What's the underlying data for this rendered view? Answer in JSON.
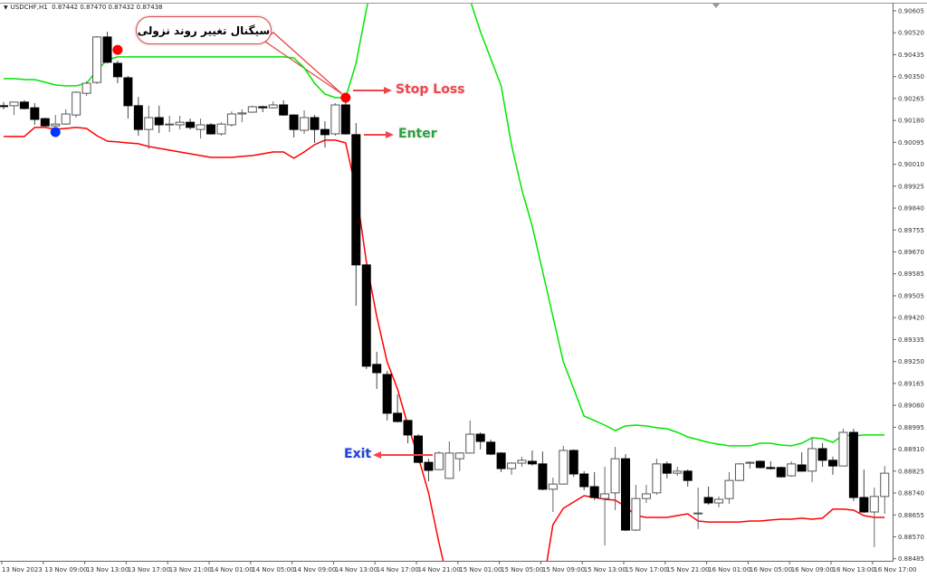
{
  "header": {
    "symbol": "USDCHF,H1",
    "ohlc": "0.87442 0.87470 0.87432 0.87438"
  },
  "annotations": {
    "callout": "سیگنال تغییر روند نزولی",
    "stop_loss": "Stop Loss",
    "enter": "Enter",
    "exit": "Exit"
  },
  "colors": {
    "upper_band": "#00e600",
    "lower_band": "#ff0000",
    "bull_body": "#ffffff",
    "bear_body": "#000000",
    "annotation_red": "#f0454b",
    "enter_green": "#2aa33a",
    "exit_blue": "#1f3fe0",
    "sell_dot": "#ff0000",
    "buy_dot": "#0033ff"
  },
  "chart_data": {
    "type": "candlestick",
    "title": "",
    "ylim": [
      0.88485,
      0.90605
    ],
    "y_ticks": [
      "0.90605",
      "0.90520",
      "0.90435",
      "0.90350",
      "0.90265",
      "0.90180",
      "0.90095",
      "0.90010",
      "0.89925",
      "0.89840",
      "0.89755",
      "0.89670",
      "0.89585",
      "0.89505",
      "0.89420",
      "0.89335",
      "0.89250",
      "0.89165",
      "0.89080",
      "0.88995",
      "0.88910",
      "0.88825",
      "0.88740",
      "0.88655",
      "0.88570",
      "0.88485"
    ],
    "x_ticks": [
      "13 Nov 2023",
      "13 Nov 09:00",
      "13 Nov 13:00",
      "13 Nov 17:00",
      "13 Nov 21:00",
      "14 Nov 01:00",
      "14 Nov 05:00",
      "14 Nov 09:00",
      "14 Nov 13:00",
      "14 Nov 17:00",
      "14 Nov 21:00",
      "15 Nov 01:00",
      "15 Nov 05:00",
      "15 Nov 09:00",
      "15 Nov 13:00",
      "15 Nov 17:00",
      "15 Nov 21:00",
      "16 Nov 01:00",
      "16 Nov 05:00",
      "16 Nov 09:00",
      "16 Nov 13:00",
      "16 Nov 17:00"
    ],
    "candles_ohlc": [
      [
        0.90238,
        0.90252,
        0.90224,
        0.90236
      ],
      [
        0.90238,
        0.90252,
        0.90202,
        0.90252
      ],
      [
        0.90252,
        0.90259,
        0.90224,
        0.90227
      ],
      [
        0.9023,
        0.90248,
        0.90164,
        0.90185
      ],
      [
        0.90188,
        0.90192,
        0.90157,
        0.9016
      ],
      [
        0.9016,
        0.90202,
        0.90157,
        0.90167
      ],
      [
        0.90167,
        0.90224,
        0.90164,
        0.90206
      ],
      [
        0.90202,
        0.90294,
        0.90192,
        0.9029
      ],
      [
        0.90286,
        0.90332,
        0.90276,
        0.90325
      ],
      [
        0.90328,
        0.90507,
        0.90322,
        0.90504
      ],
      [
        0.90504,
        0.90524,
        0.90402,
        0.90406
      ],
      [
        0.90402,
        0.90412,
        0.90325,
        0.9035
      ],
      [
        0.90346,
        0.90353,
        0.90188,
        0.90238
      ],
      [
        0.90238,
        0.90272,
        0.90122,
        0.90146
      ],
      [
        0.90146,
        0.90238,
        0.9007,
        0.90192
      ],
      [
        0.90192,
        0.90238,
        0.90132,
        0.90164
      ],
      [
        0.90164,
        0.90199,
        0.90136,
        0.90167
      ],
      [
        0.90164,
        0.90199,
        0.90146,
        0.90174
      ],
      [
        0.90174,
        0.90188,
        0.90146,
        0.90154
      ],
      [
        0.90146,
        0.90188,
        0.90111,
        0.90164
      ],
      [
        0.90164,
        0.90171,
        0.90126,
        0.90129
      ],
      [
        0.90129,
        0.90174,
        0.90122,
        0.90167
      ],
      [
        0.90164,
        0.90216,
        0.90157,
        0.90206
      ],
      [
        0.90206,
        0.90224,
        0.90174,
        0.9021
      ],
      [
        0.90213,
        0.90238,
        0.9021,
        0.90234
      ],
      [
        0.90234,
        0.90238,
        0.90213,
        0.9023
      ],
      [
        0.9023,
        0.90255,
        0.90227,
        0.90241
      ],
      [
        0.90241,
        0.90259,
        0.90199,
        0.90202
      ],
      [
        0.90202,
        0.90204,
        0.90115,
        0.90146
      ],
      [
        0.90143,
        0.9022,
        0.90129,
        0.90192
      ],
      [
        0.90192,
        0.90202,
        0.90094,
        0.90146
      ],
      [
        0.90146,
        0.90178,
        0.90076,
        0.90126
      ],
      [
        0.90129,
        0.90248,
        0.90122,
        0.90241
      ],
      [
        0.90241,
        0.90255,
        0.90126,
        0.90129
      ],
      [
        0.90126,
        0.90171,
        0.89464,
        0.89622
      ],
      [
        0.89622,
        0.89626,
        0.89219,
        0.8923
      ],
      [
        0.89237,
        0.89286,
        0.89142,
        0.89205
      ],
      [
        0.89198,
        0.89212,
        0.8902,
        0.89048
      ],
      [
        0.89048,
        0.89121,
        0.89012,
        0.89016
      ],
      [
        0.8902,
        0.89022,
        0.88932,
        0.88964
      ],
      [
        0.8896,
        0.88967,
        0.88855,
        0.88858
      ],
      [
        0.88858,
        0.88872,
        0.88785,
        0.88827
      ],
      [
        0.8883,
        0.889,
        0.88828,
        0.88894
      ],
      [
        0.88796,
        0.88939,
        0.88794,
        0.88894
      ],
      [
        0.88872,
        0.88897,
        0.88824,
        0.88894
      ],
      [
        0.88894,
        0.8902,
        0.88892,
        0.88967
      ],
      [
        0.88967,
        0.88974,
        0.88908,
        0.88939
      ],
      [
        0.88936,
        0.88946,
        0.88886,
        0.8889
      ],
      [
        0.88894,
        0.88897,
        0.8882,
        0.88834
      ],
      [
        0.88834,
        0.88858,
        0.8881,
        0.88855
      ],
      [
        0.88855,
        0.8888,
        0.88841,
        0.88866
      ],
      [
        0.88862,
        0.88904,
        0.88845,
        0.88852
      ],
      [
        0.88852,
        0.889,
        0.8875,
        0.88754
      ],
      [
        0.88754,
        0.88799,
        0.88666,
        0.88774
      ],
      [
        0.88774,
        0.88922,
        0.88772,
        0.88904
      ],
      [
        0.88904,
        0.88908,
        0.88802,
        0.88813
      ],
      [
        0.88813,
        0.88824,
        0.8875,
        0.88764
      ],
      [
        0.88764,
        0.8882,
        0.88712,
        0.88722
      ],
      [
        0.88718,
        0.88841,
        0.88536,
        0.88736
      ],
      [
        0.8874,
        0.88918,
        0.88673,
        0.88872
      ],
      [
        0.88872,
        0.8889,
        0.88592,
        0.88596
      ],
      [
        0.88596,
        0.88771,
        0.88592,
        0.88718
      ],
      [
        0.88718,
        0.88771,
        0.88701,
        0.88736
      ],
      [
        0.8874,
        0.88872,
        0.88732,
        0.88852
      ],
      [
        0.88852,
        0.88862,
        0.88796,
        0.88816
      ],
      [
        0.88816,
        0.88841,
        0.88806,
        0.88824
      ],
      [
        0.88824,
        0.8883,
        0.88764,
        0.88788
      ],
      [
        0.88659,
        0.8876,
        0.886,
        0.88662
      ],
      [
        0.88722,
        0.88764,
        0.88694,
        0.88701
      ],
      [
        0.88701,
        0.88726,
        0.88684,
        0.88715
      ],
      [
        0.88718,
        0.8882,
        0.88698,
        0.88788
      ],
      [
        0.88788,
        0.88855,
        0.88785,
        0.88852
      ],
      [
        0.88855,
        0.88862,
        0.88834,
        0.88858
      ],
      [
        0.88862,
        0.88865,
        0.88834,
        0.88838
      ],
      [
        0.88838,
        0.88862,
        0.8883,
        0.88834
      ],
      [
        0.88838,
        0.88841,
        0.88799,
        0.88802
      ],
      [
        0.88806,
        0.88862,
        0.88802,
        0.88852
      ],
      [
        0.88848,
        0.88897,
        0.88824,
        0.88824
      ],
      [
        0.88824,
        0.88953,
        0.88782,
        0.88911
      ],
      [
        0.88911,
        0.88932,
        0.88841,
        0.88866
      ],
      [
        0.88866,
        0.8888,
        0.8881,
        0.88844
      ],
      [
        0.88844,
        0.88988,
        0.88844,
        0.88974
      ],
      [
        0.88974,
        0.88988,
        0.88708,
        0.88722
      ],
      [
        0.88722,
        0.8883,
        0.88662,
        0.88666
      ],
      [
        0.88666,
        0.8876,
        0.8853,
        0.88726
      ],
      [
        0.88726,
        0.88844,
        0.88659,
        0.88816
      ]
    ],
    "upper_band": [
      0.90343,
      0.90343,
      0.90339,
      0.90339,
      0.90329,
      0.90318,
      0.90315,
      0.90315,
      0.90325,
      0.90374,
      0.90416,
      0.90427,
      0.90427,
      0.90427,
      0.90427,
      0.90427,
      0.90427,
      0.90427,
      0.90427,
      0.90427,
      0.90427,
      0.90427,
      0.90427,
      0.90427,
      0.90427,
      0.90427,
      0.90427,
      0.90427,
      0.90423,
      0.90385,
      0.90325,
      0.90283,
      0.90269,
      0.90269,
      0.90402,
      0.90612,
      0.90787,
      0.90927,
      0.91015,
      0.91067,
      0.91085,
      0.91067,
      0.90997,
      0.90892,
      0.9077,
      0.90647,
      0.90525,
      0.9042,
      0.90315,
      0.90087,
      0.89912,
      0.89772,
      0.89597,
      0.89422,
      0.89247,
      0.89142,
      0.89037,
      0.8902,
      0.89002,
      0.88981,
      0.88999,
      0.89002,
      0.88999,
      0.88992,
      0.88988,
      0.88974,
      0.88956,
      0.88946,
      0.88935,
      0.88928,
      0.88922,
      0.88922,
      0.88922,
      0.88932,
      0.88932,
      0.88925,
      0.88922,
      0.88932,
      0.88953,
      0.8895,
      0.88935,
      0.88964,
      0.8896,
      0.88964,
      0.88964,
      0.88964
    ],
    "lower_band": [
      0.90119,
      0.90119,
      0.90119,
      0.90154,
      0.90154,
      0.90147,
      0.9015,
      0.90154,
      0.9015,
      0.90122,
      0.90101,
      0.90098,
      0.90094,
      0.90091,
      0.9008,
      0.90073,
      0.90066,
      0.90059,
      0.90052,
      0.90045,
      0.90038,
      0.90038,
      0.90038,
      0.90042,
      0.90045,
      0.90052,
      0.90059,
      0.90059,
      0.90035,
      0.90059,
      0.90087,
      0.90105,
      0.90105,
      0.90094,
      0.89912,
      0.89632,
      0.89422,
      0.89247,
      0.89142,
      0.89002,
      0.8888,
      0.8874,
      0.88547,
      0.88372,
      0.88232,
      0.88127,
      0.88057,
      0.88022,
      0.88005,
      0.88022,
      0.88075,
      0.88197,
      0.88372,
      0.88617,
      0.8868,
      0.88705,
      0.88729,
      0.88722,
      0.88715,
      0.88712,
      0.88687,
      0.88652,
      0.88645,
      0.88645,
      0.88645,
      0.88652,
      0.88659,
      0.88631,
      0.88627,
      0.88627,
      0.88627,
      0.88627,
      0.88631,
      0.88631,
      0.88635,
      0.88638,
      0.88638,
      0.88642,
      0.88638,
      0.88642,
      0.88677,
      0.88677,
      0.88673,
      0.88652,
      0.88645,
      0.88645
    ],
    "markers": [
      {
        "type": "buy",
        "candle": 5,
        "price": 0.90136,
        "color": "#0033ff"
      },
      {
        "type": "sell",
        "candle": 11,
        "price": 0.90454,
        "color": "#ff0000"
      },
      {
        "type": "sell",
        "candle": 33,
        "price": 0.90269,
        "color": "#ff0000"
      }
    ]
  }
}
